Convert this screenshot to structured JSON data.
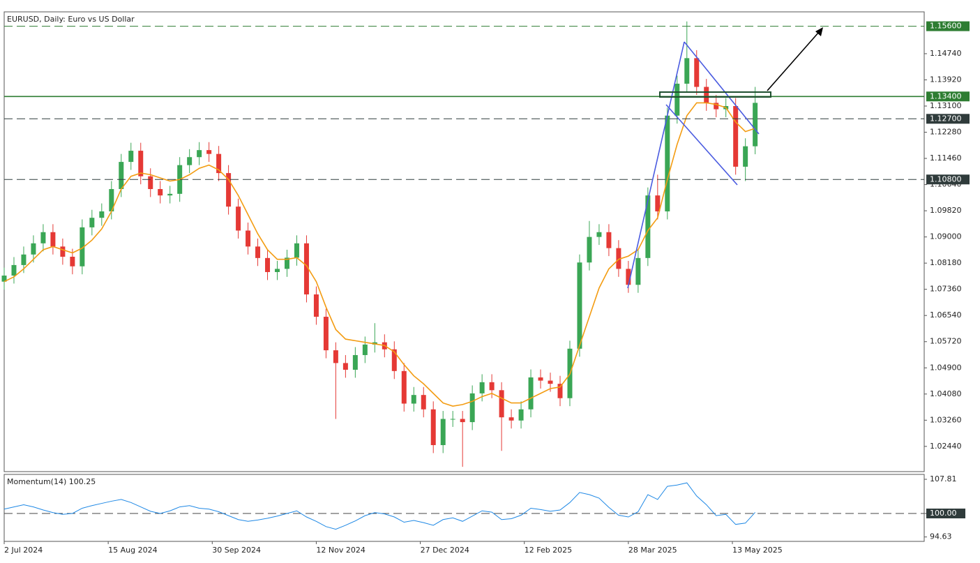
{
  "chart_data": {
    "type": "candlestick",
    "title": "EURUSD, Daily:  Euro vs US Dollar",
    "up_color": "#3aa655",
    "down_color": "#e53935",
    "xlim": [
      0,
      283
    ],
    "xticks": [
      {
        "value": 0,
        "label": "2 Jul 2024"
      },
      {
        "value": 32,
        "label": "15 Aug 2024"
      },
      {
        "value": 64,
        "label": "30 Sep 2024"
      },
      {
        "value": 96,
        "label": "12 Nov 2024"
      },
      {
        "value": 128,
        "label": "27 Dec 2024"
      },
      {
        "value": 160,
        "label": "12 Feb 2025"
      },
      {
        "value": 192,
        "label": "28 Mar 2025"
      },
      {
        "value": 224,
        "label": "13 May 2025"
      }
    ],
    "ylim": [
      1.0165,
      1.1605
    ],
    "yticks": [
      {
        "value": 1.0244,
        "label": "1.02440"
      },
      {
        "value": 1.0326,
        "label": "1.03260"
      },
      {
        "value": 1.0408,
        "label": "1.04080"
      },
      {
        "value": 1.049,
        "label": "1.04900"
      },
      {
        "value": 1.0572,
        "label": "1.05720"
      },
      {
        "value": 1.0654,
        "label": "1.06540"
      },
      {
        "value": 1.0736,
        "label": "1.07360"
      },
      {
        "value": 1.0818,
        "label": "1.08180"
      },
      {
        "value": 1.09,
        "label": "1.09000"
      },
      {
        "value": 1.0982,
        "label": "1.09820"
      },
      {
        "value": 1.1064,
        "label": "1.10640"
      },
      {
        "value": 1.1146,
        "label": "1.11460"
      },
      {
        "value": 1.1228,
        "label": "1.12280"
      },
      {
        "value": 1.131,
        "label": "1.13100"
      },
      {
        "value": 1.1392,
        "label": "1.13920"
      },
      {
        "value": 1.1474,
        "label": "1.14740"
      }
    ],
    "levels": [
      {
        "value": 1.156,
        "label": "1.15600",
        "color": "#2e7d32",
        "dashed": true
      },
      {
        "value": 1.134,
        "label": "1.13400",
        "color": "#2e7d32",
        "dashed": false
      },
      {
        "value": 1.127,
        "label": "1.12700",
        "color": "#2f3b3b",
        "dashed": true
      },
      {
        "value": 1.108,
        "label": "1.10800",
        "color": "#2f3b3b",
        "dashed": true
      }
    ],
    "x": [
      0,
      3,
      6,
      9,
      12,
      15,
      18,
      21,
      24,
      27,
      30,
      33,
      36,
      39,
      42,
      45,
      48,
      51,
      54,
      57,
      60,
      63,
      66,
      69,
      72,
      75,
      78,
      81,
      84,
      87,
      90,
      93,
      96,
      99,
      102,
      105,
      108,
      111,
      114,
      117,
      120,
      123,
      126,
      129,
      132,
      135,
      138,
      141,
      144,
      147,
      150,
      153,
      156,
      159,
      162,
      165,
      168,
      171,
      174,
      177,
      180,
      183,
      186,
      189,
      192,
      195,
      198,
      201,
      204,
      207,
      210,
      213,
      216,
      219,
      222,
      225,
      228,
      231
    ],
    "open": [
      1.076,
      1.0779,
      1.0812,
      1.0845,
      1.088,
      1.0915,
      1.087,
      1.0838,
      1.0808,
      1.093,
      1.096,
      1.098,
      1.105,
      1.1135,
      1.117,
      1.109,
      1.105,
      1.103,
      1.1035,
      1.1125,
      1.115,
      1.1172,
      1.116,
      1.11,
      1.0995,
      1.092,
      1.087,
      1.0834,
      1.079,
      1.08,
      1.0835,
      1.088,
      1.072,
      1.065,
      1.0545,
      1.0505,
      1.0484,
      1.053,
      1.0563,
      1.057,
      1.0548,
      1.048,
      1.0378,
      1.0405,
      1.036,
      1.0248,
      1.033,
      1.033,
      1.032,
      1.041,
      1.0445,
      1.042,
      1.0335,
      1.0325,
      1.036,
      1.046,
      1.045,
      1.044,
      1.0395,
      1.055,
      1.082,
      1.09,
      1.0915,
      1.0865,
      1.08,
      1.075,
      1.0834,
      1.103,
      1.098,
      1.128,
      1.138,
      1.146,
      1.137,
      1.132,
      1.13,
      1.131,
      1.112,
      1.1184
    ],
    "high": [
      1.0804,
      1.0837,
      1.087,
      1.0905,
      1.094,
      1.094,
      1.0895,
      1.0863,
      1.0955,
      1.0985,
      1.1005,
      1.1075,
      1.116,
      1.1195,
      1.1195,
      1.1115,
      1.1075,
      1.106,
      1.115,
      1.1175,
      1.1197,
      1.1197,
      1.1185,
      1.1125,
      1.102,
      1.0945,
      1.0895,
      1.0859,
      1.0825,
      1.086,
      1.0905,
      1.0905,
      1.0745,
      1.0675,
      1.057,
      1.053,
      1.0555,
      1.0588,
      1.063,
      1.0595,
      1.0573,
      1.0505,
      1.043,
      1.043,
      1.0385,
      1.0355,
      1.0355,
      1.0355,
      1.0435,
      1.047,
      1.047,
      1.0445,
      1.036,
      1.0385,
      1.0485,
      1.0485,
      1.0475,
      1.0465,
      1.0575,
      1.0845,
      1.095,
      1.094,
      1.094,
      1.089,
      1.0825,
      1.0859,
      1.1055,
      1.1095,
      1.1305,
      1.1405,
      1.1575,
      1.1485,
      1.1395,
      1.1345,
      1.1335,
      1.1335,
      1.1209,
      1.137
    ],
    "low": [
      1.0735,
      1.0754,
      1.0787,
      1.082,
      1.0855,
      1.0845,
      1.0813,
      1.0783,
      1.0783,
      1.0905,
      1.0935,
      1.0955,
      1.1025,
      1.111,
      1.1065,
      1.1025,
      1.1005,
      1.1005,
      1.101,
      1.11,
      1.1125,
      1.1135,
      1.1075,
      1.097,
      1.0895,
      1.0845,
      1.0809,
      1.0765,
      1.0765,
      1.0775,
      1.081,
      1.0695,
      1.0625,
      1.052,
      1.033,
      1.0459,
      1.0459,
      1.0505,
      1.0538,
      1.0523,
      1.0455,
      1.0353,
      1.0353,
      1.0335,
      1.0223,
      1.0223,
      1.0305,
      1.018,
      1.0295,
      1.0385,
      1.0395,
      1.023,
      1.03,
      1.03,
      1.0335,
      1.0425,
      1.0415,
      1.037,
      1.037,
      1.0525,
      1.0795,
      1.0875,
      1.084,
      1.0775,
      1.0725,
      1.0725,
      1.0809,
      1.0955,
      1.0955,
      1.1255,
      1.1355,
      1.1345,
      1.1295,
      1.1275,
      1.1275,
      1.1095,
      1.1075,
      1.1159
    ],
    "close": [
      1.0779,
      1.0812,
      1.0845,
      1.088,
      1.0915,
      1.087,
      1.0838,
      1.0808,
      1.093,
      1.096,
      1.098,
      1.105,
      1.1135,
      1.117,
      1.109,
      1.105,
      1.103,
      1.1035,
      1.1125,
      1.115,
      1.1172,
      1.116,
      1.11,
      1.0995,
      1.092,
      1.087,
      1.0834,
      1.079,
      1.08,
      1.0835,
      1.088,
      1.072,
      1.065,
      1.0545,
      1.0505,
      1.0484,
      1.053,
      1.0563,
      1.057,
      1.0548,
      1.048,
      1.0378,
      1.0405,
      1.036,
      1.0248,
      1.033,
      1.033,
      1.032,
      1.041,
      1.0445,
      1.042,
      1.0335,
      1.0325,
      1.036,
      1.046,
      1.045,
      1.044,
      1.0395,
      1.055,
      1.082,
      1.09,
      1.0915,
      1.0865,
      1.08,
      1.075,
      1.0834,
      1.103,
      1.098,
      1.128,
      1.138,
      1.146,
      1.137,
      1.132,
      1.13,
      1.131,
      1.112,
      1.1184,
      1.132
    ],
    "ma": {
      "color": "#f39c12",
      "values": [
        1.076,
        1.0775,
        1.08,
        1.083,
        1.086,
        1.087,
        1.086,
        1.085,
        1.0865,
        1.089,
        1.0925,
        1.098,
        1.105,
        1.109,
        1.11,
        1.1095,
        1.1085,
        1.1075,
        1.108,
        1.1095,
        1.1115,
        1.1125,
        1.111,
        1.108,
        1.103,
        1.097,
        1.091,
        1.086,
        1.083,
        1.083,
        1.0835,
        1.081,
        1.076,
        1.068,
        1.061,
        1.058,
        1.0575,
        1.057,
        1.0565,
        1.056,
        1.054,
        1.05,
        1.0465,
        1.044,
        1.041,
        1.038,
        1.037,
        1.0375,
        1.0385,
        1.04,
        1.041,
        1.0395,
        1.038,
        1.038,
        1.0395,
        1.041,
        1.0425,
        1.043,
        1.047,
        1.056,
        1.065,
        1.074,
        1.08,
        1.083,
        1.084,
        1.086,
        1.092,
        1.096,
        1.108,
        1.119,
        1.128,
        1.132,
        1.132,
        1.1315,
        1.1305,
        1.126,
        1.123,
        1.124
      ]
    },
    "momentum": {
      "title": "Momentum(14) 100.25",
      "color": "#1e88e5",
      "ylim": [
        93.62,
        108.93
      ],
      "yticks": [
        94.63,
        {
          "value": 100,
          "label": "100.00",
          "level": true
        },
        107.81
      ],
      "values": [
        101.0,
        101.5,
        102.0,
        101.5,
        100.8,
        100.2,
        99.8,
        100.0,
        101.2,
        101.8,
        102.3,
        102.8,
        103.2,
        102.5,
        101.5,
        100.5,
        100.0,
        100.6,
        101.5,
        101.8,
        101.2,
        101.0,
        100.4,
        99.5,
        98.6,
        98.2,
        98.5,
        98.9,
        99.4,
        100.0,
        100.6,
        99.2,
        98.2,
        97.0,
        96.4,
        97.3,
        98.3,
        99.5,
        100.2,
        99.9,
        99.2,
        98.0,
        98.4,
        97.9,
        97.3,
        98.6,
        99.0,
        98.2,
        99.4,
        100.6,
        100.3,
        98.6,
        98.8,
        99.6,
        101.2,
        100.9,
        100.5,
        100.8,
        102.5,
        104.8,
        104.3,
        103.5,
        101.4,
        99.6,
        99.2,
        100.4,
        104.3,
        103.2,
        106.2,
        106.5,
        107.0,
        104.0,
        102.0,
        99.5,
        99.8,
        97.5,
        97.8,
        100.25
      ]
    }
  }
}
